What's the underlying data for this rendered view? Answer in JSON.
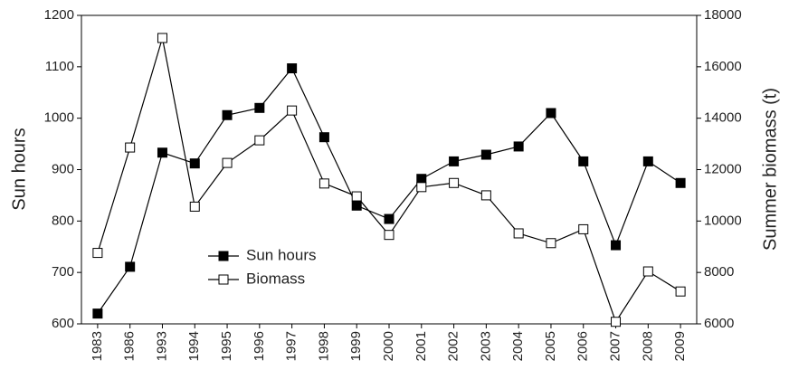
{
  "chart_data": {
    "type": "line",
    "categories": [
      "1983",
      "1986",
      "1993",
      "1994",
      "1995",
      "1996",
      "1997",
      "1998",
      "1999",
      "2000",
      "2001",
      "2002",
      "2003",
      "2004",
      "2005",
      "2006",
      "2007",
      "2008",
      "2009"
    ],
    "series": [
      {
        "name": "Sun hours",
        "color": "#000000",
        "fill": "#000000",
        "values": [
          620,
          711,
          933,
          912,
          1006,
          1020,
          1097,
          963,
          830,
          804,
          882,
          916,
          929,
          945,
          1010,
          916,
          753,
          916,
          874
        ]
      },
      {
        "name": "Biomass",
        "color": "#000000",
        "fill": "#ffffff",
        "axis": "y2",
        "values": [
          8760,
          12860,
          17120,
          10560,
          12260,
          13140,
          14300,
          11460,
          10960,
          9460,
          11320,
          11480,
          11000,
          9520,
          9140,
          9680,
          6080,
          8040,
          7260
        ]
      }
    ],
    "ylabel": "Sun hours",
    "y2label": "Summer biomass (t)",
    "ylim": [
      600,
      1200
    ],
    "yticks": [
      600,
      700,
      800,
      900,
      1000,
      1100,
      1200
    ],
    "y2lim": [
      6000,
      18000
    ],
    "y2ticks": [
      6000,
      8000,
      10000,
      12000,
      14000,
      16000,
      18000
    ],
    "grid": false
  }
}
